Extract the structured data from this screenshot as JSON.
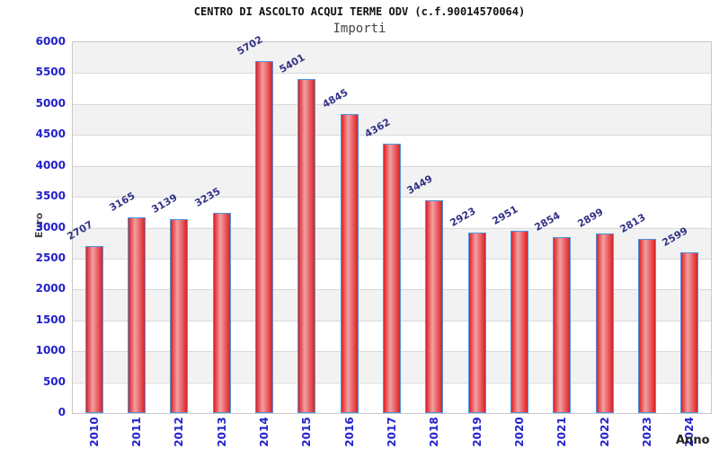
{
  "header": {
    "title": "CENTRO DI ASCOLTO ACQUI TERME ODV (c.f.90014570064)",
    "subtitle": "Importi"
  },
  "chart_data": {
    "type": "bar",
    "title": "CENTRO DI ASCOLTO ACQUI TERME ODV (c.f.90014570064)",
    "subtitle": "Importi",
    "categories": [
      "2010",
      "2011",
      "2012",
      "2013",
      "2014",
      "2015",
      "2016",
      "2017",
      "2018",
      "2019",
      "2020",
      "2021",
      "2022",
      "2023",
      "2024"
    ],
    "values": [
      2707,
      3165,
      3139,
      3235,
      5702,
      5401,
      4845,
      4362,
      3449,
      2923,
      2951,
      2854,
      2899,
      2813,
      2599
    ],
    "xlabel": "Anno",
    "ylabel": "Euro",
    "ylim": [
      0,
      6000
    ],
    "ytick_step": 500,
    "grid": true,
    "legend": false,
    "value_labels_shown": true,
    "colors": {
      "bar_edge": "#dd2026",
      "bar_center": "#f2a0a2",
      "bar_border": "#4d96dd",
      "axis_tick_label": "#2222cc",
      "value_label": "#333388",
      "axis_title": "#444444",
      "band": "#f2f2f2",
      "gridline": "#d9d9d9",
      "title_color": "#111111",
      "subtitle_color": "#444444",
      "xlabel_color": "#222222"
    }
  }
}
